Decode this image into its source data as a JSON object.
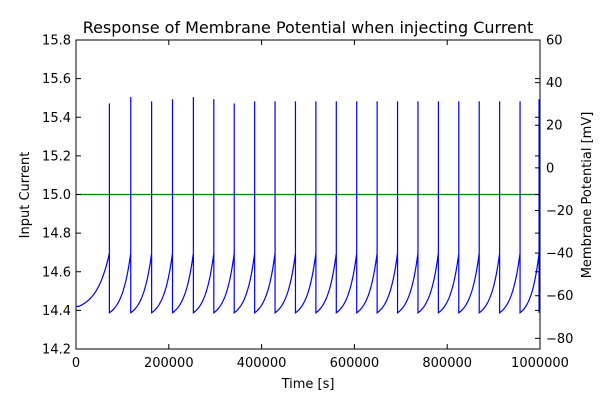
{
  "chart_data": {
    "type": "line",
    "title": "Response of Membrane Potential when injecting Current",
    "xlabel": "Time [s]",
    "ylabel_left": "Input Current",
    "ylabel_right": "Membrane Potential [mV]",
    "xlim": [
      0,
      1000000
    ],
    "ylim_left": [
      14.2,
      15.8
    ],
    "ylim_right": [
      -85,
      60
    ],
    "x_ticks": [
      0,
      200000,
      400000,
      600000,
      800000,
      1000000
    ],
    "x_tick_labels": [
      "0",
      "200000",
      "400000",
      "600000",
      "800000",
      "1000000"
    ],
    "y_left_ticks": [
      14.2,
      14.4,
      14.6,
      14.8,
      15.0,
      15.2,
      15.4,
      15.6,
      15.8
    ],
    "y_left_tick_labels": [
      "14.2",
      "14.4",
      "14.6",
      "14.8",
      "15.0",
      "15.2",
      "15.4",
      "15.6",
      "15.8"
    ],
    "y_right_ticks": [
      -80,
      -60,
      -40,
      -20,
      0,
      20,
      40,
      60
    ],
    "y_right_tick_labels": [
      "−80",
      "−60",
      "−40",
      "−20",
      "0",
      "20",
      "40",
      "60"
    ],
    "series": [
      {
        "name": "Input Current",
        "axis": "left",
        "color": "#008000",
        "x": [
          0,
          1000000
        ],
        "y": [
          15.0,
          15.0
        ]
      },
      {
        "name": "Membrane Potential",
        "axis": "right",
        "color": "#0000ff",
        "start_value": -65,
        "initial_min": -65,
        "reset_value": -68,
        "threshold_value": -40,
        "spike_times": [
          72000,
          118000,
          163000,
          208000,
          253000,
          297000,
          341000,
          385000,
          429000,
          473000,
          517000,
          561000,
          605000,
          649000,
          693000,
          737000,
          781000,
          825000,
          869000,
          913000,
          957000,
          998000
        ],
        "spike_peaks": [
          30,
          33,
          31,
          32,
          33,
          32,
          30,
          31,
          31,
          31,
          31,
          31,
          31,
          31,
          31,
          31,
          31,
          31,
          31,
          31,
          31,
          32
        ],
        "final_value": 20
      }
    ]
  }
}
